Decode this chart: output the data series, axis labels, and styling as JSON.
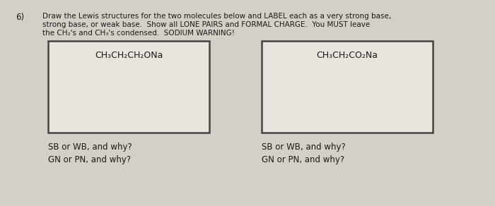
{
  "page_background": "#d4d0c8",
  "box_fill": "#e8e5de",
  "box_edge": "#444444",
  "text_color": "#1a1a1a",
  "question_number": "6)",
  "instruction_line1": "Draw the Lewis structures for the two molecules below and LABEL each as a very strong base,",
  "instruction_line2": "strong base, or weak base.  Show all LONE PAIRS and FORMAL CHARGE.  You MUST leave",
  "instruction_line3": "the CH₂'s and CH₃'s condensed.  SODIUM WARNING!",
  "box1_formula": "CH₃CH₂CH₂ONa",
  "box2_formula": "CH₃CH₂CO₂Na",
  "label_sb": "SB or WB, and why?",
  "label_gn": "GN or PN, and why?",
  "font_size_instruction": 7.5,
  "font_size_formula": 9.0,
  "font_size_label": 8.5,
  "font_size_number": 8.5
}
